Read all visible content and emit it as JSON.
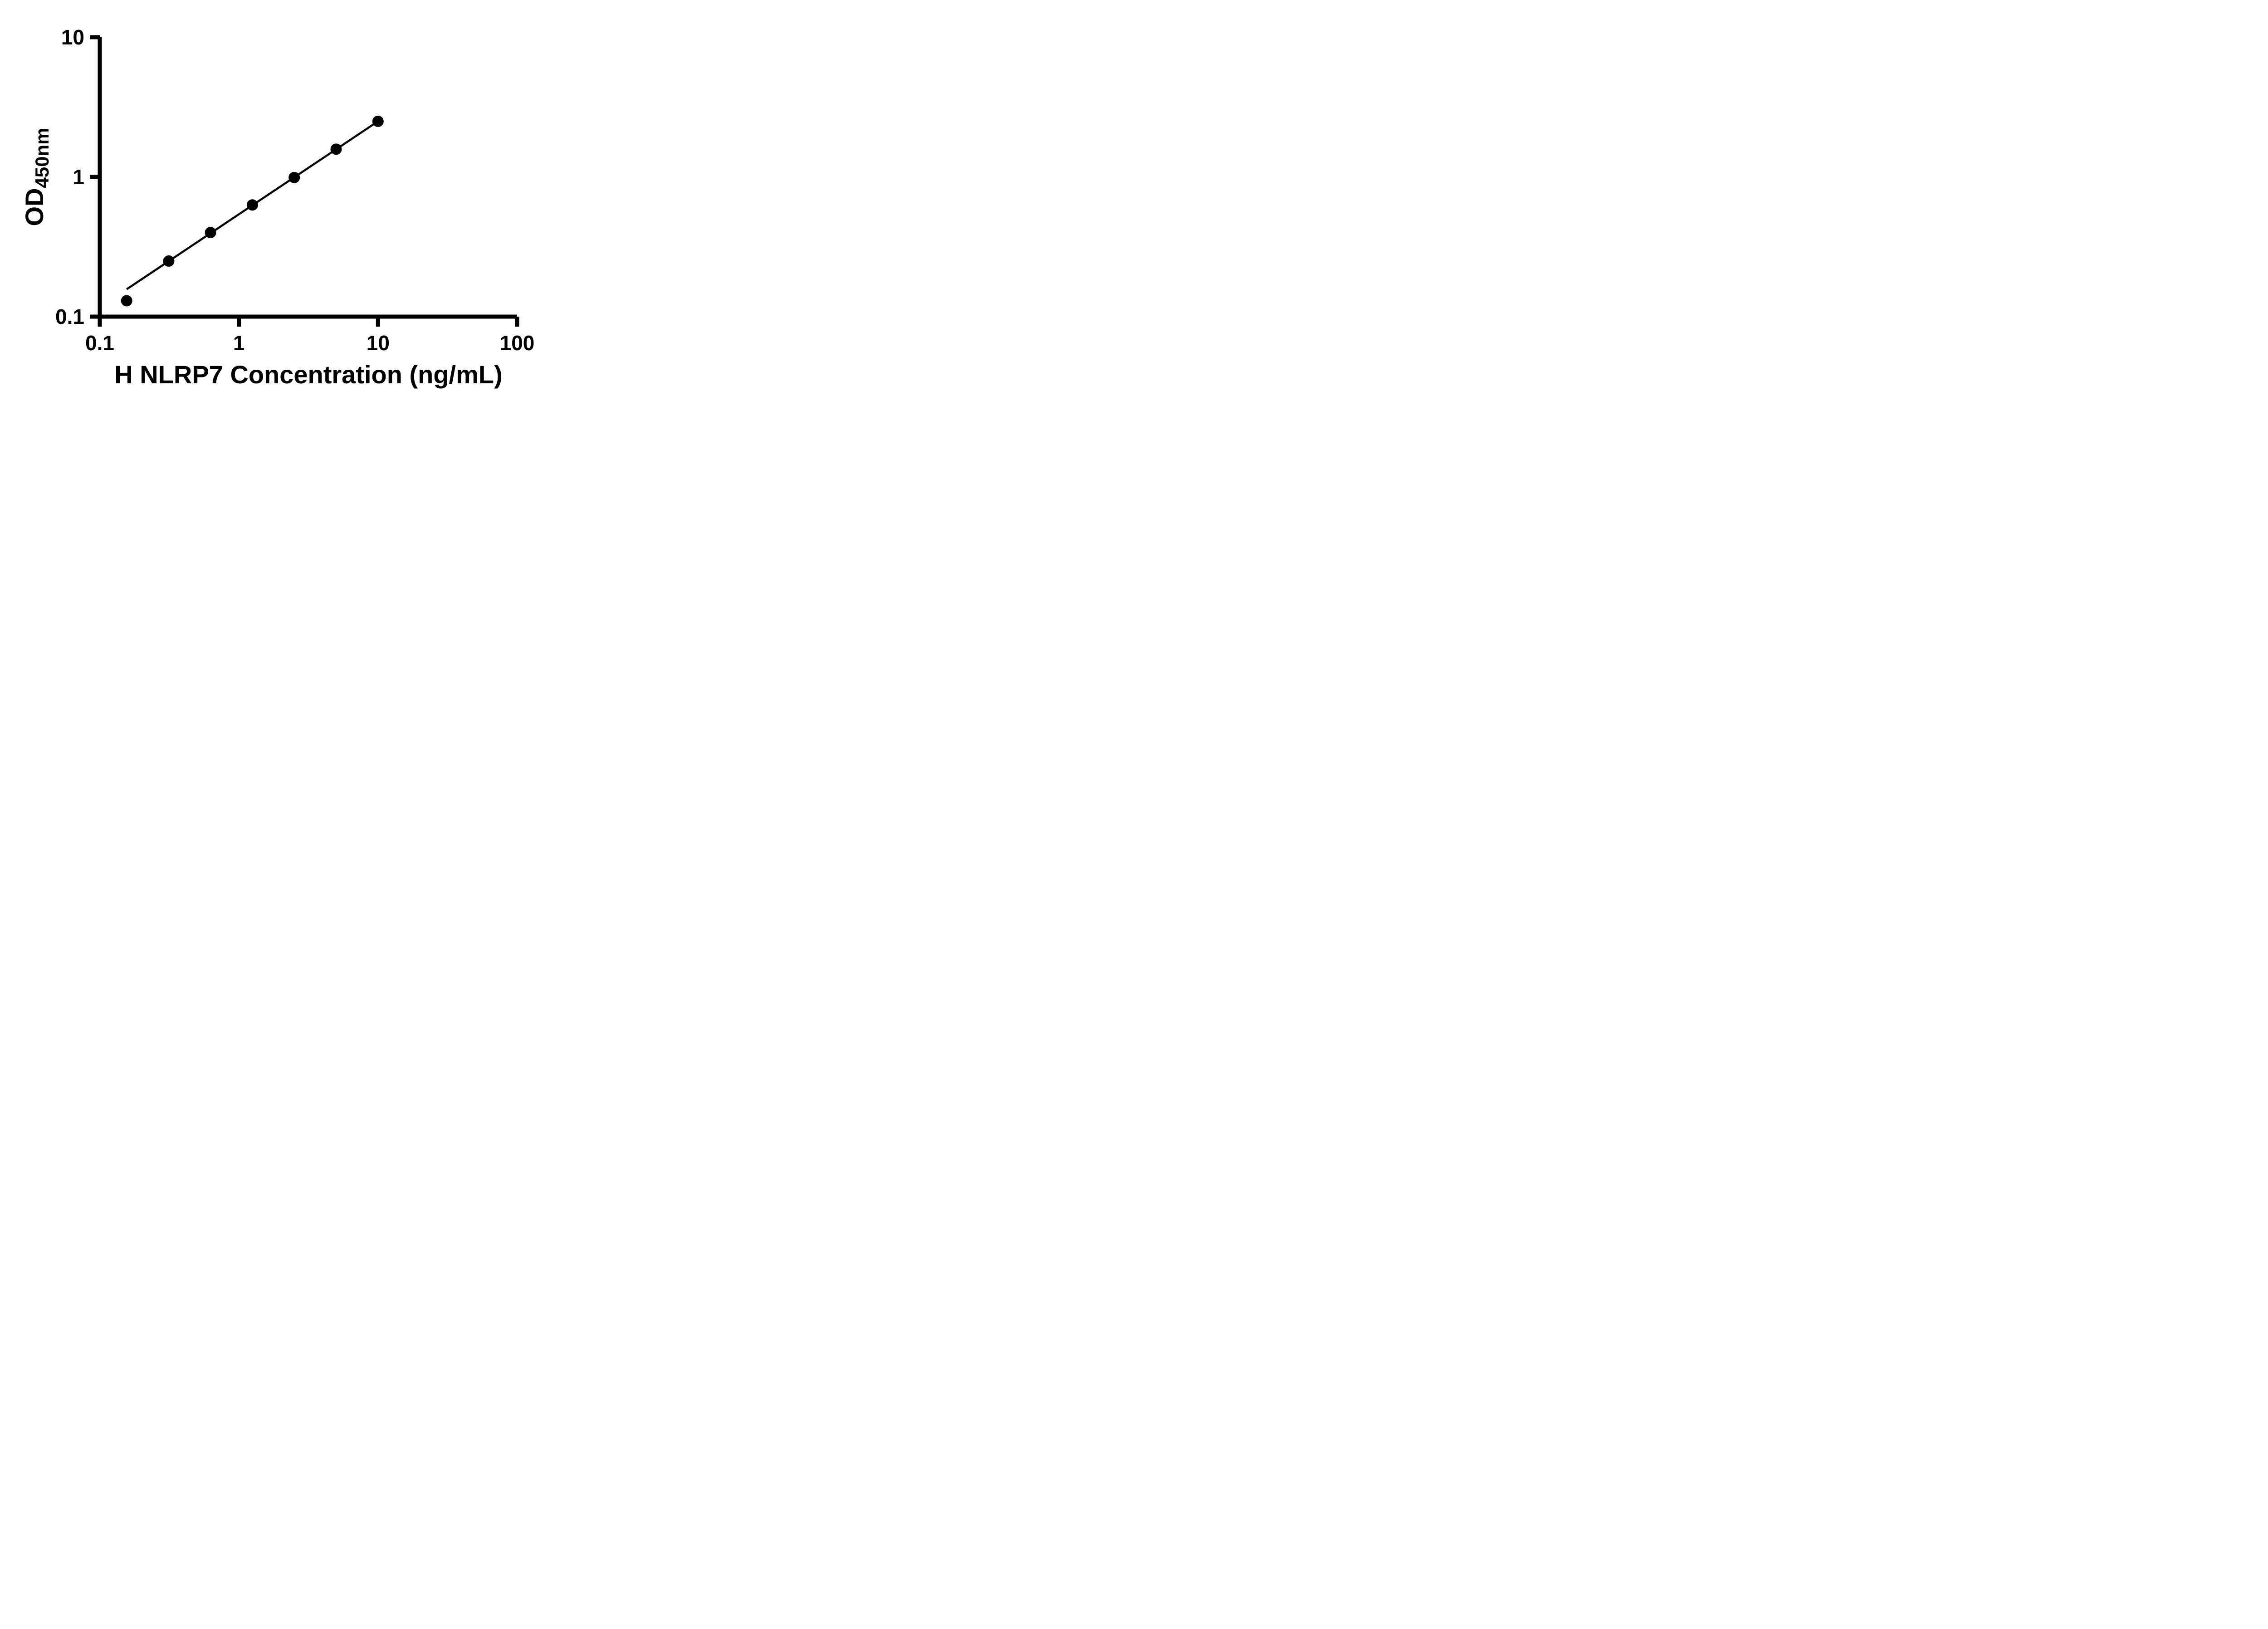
{
  "page": {
    "background": "#ffffff"
  },
  "chart_data": {
    "type": "scatter",
    "title": "",
    "xlabel": "H NLRP7 Concentration (ng/mL)",
    "ylabel_main": "OD",
    "ylabel_sub": "450nm",
    "x_scale": "log",
    "y_scale": "log",
    "xlim": [
      0.1,
      100
    ],
    "ylim": [
      0.1,
      10
    ],
    "grid": false,
    "legend": "none",
    "axis_color": "#000000",
    "xticks": {
      "values": [
        0.1,
        1,
        10,
        100
      ],
      "labels": [
        "0.1",
        "1",
        "10",
        "100"
      ]
    },
    "yticks": {
      "values": [
        0.1,
        1,
        10
      ],
      "labels": [
        "0.1",
        "1",
        "10"
      ]
    },
    "series": [
      {
        "x": [
          0.156,
          0.313,
          0.625,
          1.25,
          2.5,
          5,
          10
        ],
        "y": [
          0.13,
          0.25,
          0.4,
          0.63,
          0.99,
          1.58,
          2.5
        ],
        "marker": "circle",
        "marker_color": "#000000"
      }
    ],
    "trendline": {
      "x": [
        0.156,
        10
      ],
      "y": [
        0.157,
        2.5
      ],
      "color": "#000000"
    }
  }
}
